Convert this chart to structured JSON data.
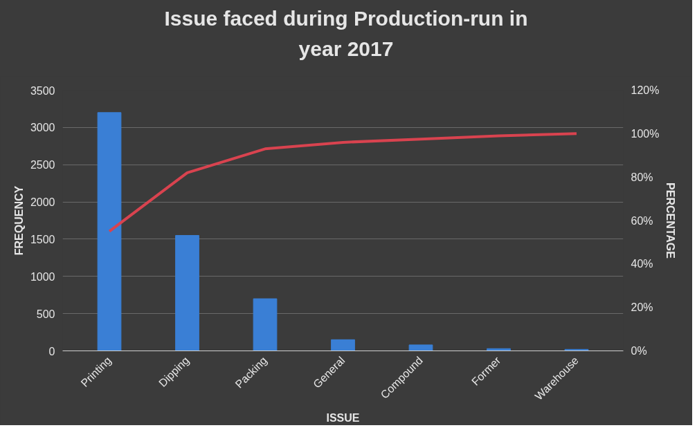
{
  "chart_data": {
    "type": "bar",
    "title": "Issue faced during Production-run in year 2017",
    "xlabel": "ISSUE",
    "ylabel": "FREQUENCY",
    "y2label": "PERCENTAGE",
    "categories": [
      "Printing",
      "Dipping",
      "Packing",
      "General",
      "Compound",
      "Former",
      "Warehouse"
    ],
    "series": [
      {
        "color": "#3a7fd5",
        "values": [
          3200,
          1550,
          700,
          150,
          80,
          30,
          20
        ]
      },
      {
        "type": "line",
        "axis": "y2",
        "color": "#d9434f",
        "values": [
          55,
          82,
          93,
          96,
          97.5,
          99,
          100
        ]
      }
    ],
    "ylim": [
      0,
      3500
    ],
    "yticks": [
      0,
      500,
      1000,
      1500,
      2000,
      2500,
      3000,
      3500
    ],
    "y2lim": [
      0,
      120
    ],
    "y2ticks": [
      {
        "value": 0,
        "label": "0%"
      },
      {
        "value": 20,
        "label": "20%"
      },
      {
        "value": 40,
        "label": "40%"
      },
      {
        "value": 60,
        "label": "60%"
      },
      {
        "value": 80,
        "label": "80%"
      },
      {
        "value": 100,
        "label": "100%"
      },
      {
        "value": 120,
        "label": "120%"
      }
    ],
    "grid": "y"
  }
}
